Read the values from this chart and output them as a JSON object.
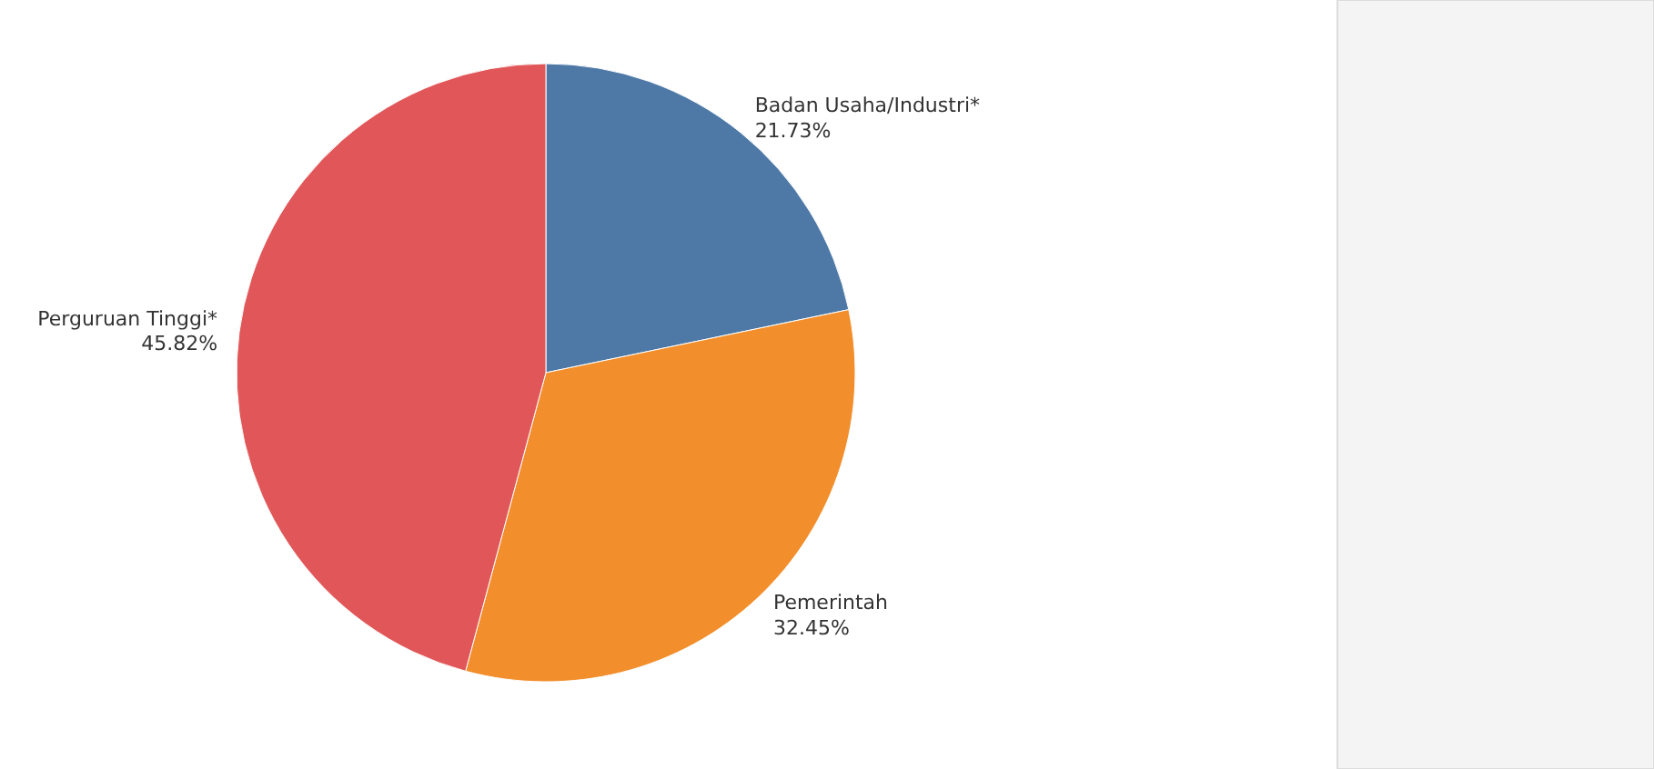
{
  "chart_data": {
    "type": "pie",
    "categories": [
      "Badan Usaha/Industri*",
      "Pemerintah",
      "Perguruan Tinggi*"
    ],
    "values": [
      21.73,
      32.45,
      45.82
    ],
    "colors": [
      "#4e79a7",
      "#f28e2b",
      "#e15759"
    ],
    "value_labels": [
      "21.73%",
      "32.45%",
      "45.82%"
    ]
  }
}
